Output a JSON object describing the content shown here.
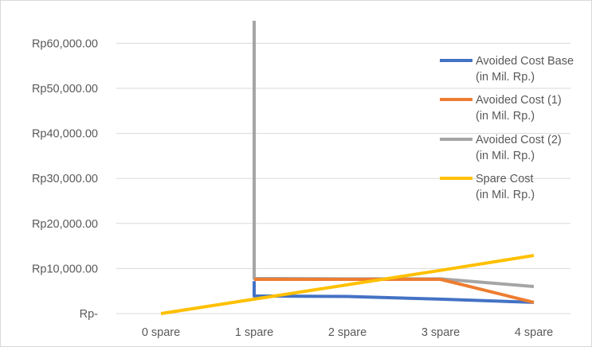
{
  "chart_data": {
    "type": "line",
    "categories": [
      "0 spare",
      "1 spare",
      "2 spare",
      "3 spare",
      "4 spare"
    ],
    "y_ticks": [
      "Rp-",
      "Rp10,000.00",
      "Rp20,000.00",
      "Rp30,000.00",
      "Rp40,000.00",
      "Rp50,000.00",
      "Rp60,000.00"
    ],
    "ylim": [
      0,
      60000
    ],
    "grid": "horizontal",
    "legend_position": "right",
    "series": [
      {
        "name_line1": "Avoided Cost Base",
        "name_line2": "(in Mil. Rp.)",
        "color": "#4472c4",
        "points": [
          [
            1,
            7200
          ],
          [
            1,
            3900
          ],
          [
            2,
            3800
          ],
          [
            3,
            3200
          ],
          [
            4,
            2500
          ]
        ]
      },
      {
        "name_line1": "Avoided Cost  (1)",
        "name_line2": "(in Mil. Rp.)",
        "color": "#ed7d31",
        "points": [
          [
            1,
            7600
          ],
          [
            2,
            7600
          ],
          [
            3,
            7600
          ],
          [
            4,
            2500
          ]
        ]
      },
      {
        "name_line1": "Avoided Cost  (2)",
        "name_line2": "(in Mil. Rp.)",
        "color": "#a5a5a5",
        "points": [
          [
            1,
            65000
          ],
          [
            1,
            7800
          ],
          [
            2,
            7700
          ],
          [
            3,
            7700
          ],
          [
            4,
            6000
          ]
        ]
      },
      {
        "name_line1": "Spare Cost",
        "name_line2": "(in Mil. Rp.)",
        "color": "#ffc000",
        "points": [
          [
            0,
            0
          ],
          [
            1,
            3200
          ],
          [
            2,
            6400
          ],
          [
            3,
            9600
          ],
          [
            4,
            12900
          ]
        ]
      }
    ]
  }
}
